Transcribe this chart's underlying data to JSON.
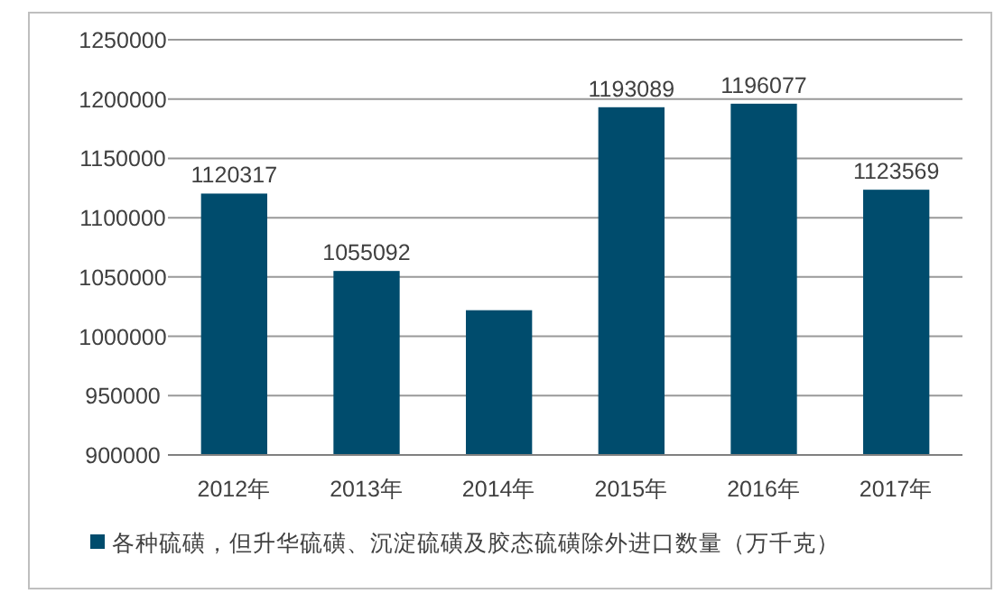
{
  "chart_data": {
    "type": "bar",
    "categories": [
      "2012年",
      "2013年",
      "2014年",
      "2015年",
      "2016年",
      "2017年"
    ],
    "series": [
      {
        "name": "各种硫磺，但升华硫磺、沉淀硫磺及胶态硫磺除外进口数量（万千克）",
        "color": "#004c6d",
        "values": [
          1120317,
          1055092,
          1022000,
          1193089,
          1196077,
          1123569
        ],
        "value_labels": [
          "1120317",
          "1055092",
          null,
          "1193089",
          "1196077",
          "1123569"
        ]
      }
    ],
    "ylim": [
      900000,
      1250000
    ],
    "yticks": [
      900000,
      950000,
      1000000,
      1050000,
      1100000,
      1150000,
      1200000,
      1250000
    ],
    "grid": "y",
    "legend": "bottom"
  }
}
